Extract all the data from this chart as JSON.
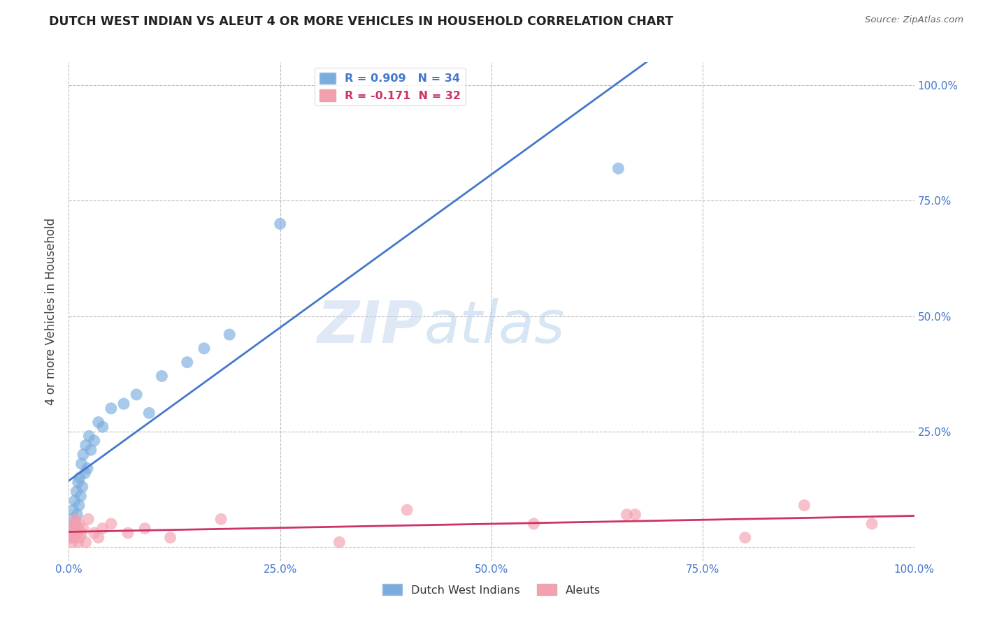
{
  "title": "DUTCH WEST INDIAN VS ALEUT 4 OR MORE VEHICLES IN HOUSEHOLD CORRELATION CHART",
  "source": "Source: ZipAtlas.com",
  "ylabel": "4 or more Vehicles in Household",
  "xlim": [
    0,
    100
  ],
  "ylim": [
    -3,
    105
  ],
  "background_color": "#ffffff",
  "grid_color": "#bbbbbb",
  "watermark_zip": "ZIP",
  "watermark_atlas": "atlas",
  "blue_R": 0.909,
  "blue_N": 34,
  "pink_R": -0.171,
  "pink_N": 32,
  "blue_color": "#7aadde",
  "pink_color": "#f4a0b0",
  "blue_line_color": "#4477cc",
  "pink_line_color": "#cc3366",
  "tick_color": "#4477cc",
  "blue_points_x": [
    0.2,
    0.3,
    0.4,
    0.5,
    0.6,
    0.7,
    0.8,
    0.9,
    1.0,
    1.1,
    1.2,
    1.3,
    1.4,
    1.5,
    1.6,
    1.7,
    1.9,
    2.0,
    2.2,
    2.4,
    2.6,
    3.0,
    3.5,
    4.0,
    5.0,
    6.5,
    8.0,
    9.5,
    11.0,
    14.0,
    16.0,
    19.0,
    25.0,
    65.0
  ],
  "blue_points_y": [
    2,
    4,
    6,
    8,
    3,
    10,
    5,
    12,
    7,
    14,
    9,
    15,
    11,
    18,
    13,
    20,
    16,
    22,
    17,
    24,
    21,
    23,
    27,
    26,
    30,
    31,
    33,
    29,
    37,
    40,
    43,
    46,
    70,
    82
  ],
  "pink_points_x": [
    0.2,
    0.3,
    0.4,
    0.5,
    0.6,
    0.7,
    0.8,
    0.9,
    1.0,
    1.1,
    1.2,
    1.3,
    1.5,
    1.7,
    2.0,
    2.3,
    3.0,
    3.5,
    4.0,
    5.0,
    7.0,
    9.0,
    12.0,
    18.0,
    32.0,
    40.0,
    55.0,
    66.0,
    67.0,
    80.0,
    87.0,
    95.0
  ],
  "pink_points_y": [
    2,
    4,
    1,
    3,
    5,
    2,
    6,
    3,
    4,
    1,
    5,
    2,
    3,
    4,
    1,
    6,
    3,
    2,
    4,
    5,
    3,
    4,
    2,
    6,
    1,
    8,
    5,
    7,
    7,
    2,
    9,
    5
  ]
}
